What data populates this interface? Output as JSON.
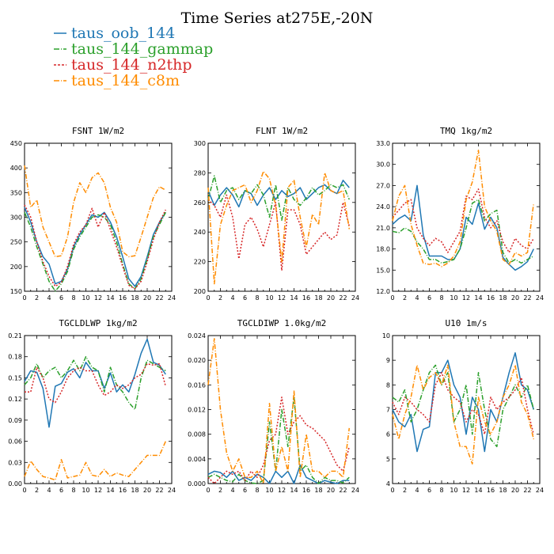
{
  "figure": {
    "title": "Time Series at275E,-20N"
  },
  "legend": [
    {
      "name": "taus_oob_144",
      "color": "#1f77b4"
    },
    {
      "name": "taus_144_gammap",
      "color": "#2ca02c"
    },
    {
      "name": "taus_144_n2thp",
      "color": "#d62728"
    },
    {
      "name": "taus_144_c8m",
      "color": "#ff8c00"
    }
  ],
  "chart_data": [
    {
      "type": "line",
      "title": "FSNT   1W/m2",
      "xlim": [
        0,
        24
      ],
      "ylim": [
        150,
        450
      ],
      "xticks": [
        0,
        2,
        4,
        6,
        8,
        10,
        12,
        14,
        16,
        18,
        20,
        22,
        24
      ],
      "yticks": [
        150,
        200,
        250,
        300,
        350,
        400,
        450
      ],
      "x": [
        0,
        1,
        2,
        3,
        4,
        5,
        6,
        7,
        8,
        9,
        10,
        11,
        12,
        13,
        14,
        15,
        16,
        17,
        18,
        19,
        20,
        21,
        22,
        23
      ],
      "series": [
        {
          "name": "taus_oob_144",
          "color": "#1f77b4",
          "dash": "",
          "values": [
            320,
            290,
            250,
            220,
            205,
            165,
            170,
            195,
            240,
            265,
            285,
            305,
            300,
            310,
            290,
            260,
            220,
            175,
            160,
            180,
            220,
            265,
            290,
            310
          ]
        },
        {
          "name": "taus_144_gammap",
          "color": "#2ca02c",
          "dash": "6,2,1,2",
          "values": [
            310,
            280,
            240,
            205,
            170,
            150,
            165,
            190,
            235,
            260,
            280,
            300,
            305,
            300,
            285,
            250,
            205,
            165,
            155,
            175,
            215,
            260,
            285,
            310
          ]
        },
        {
          "name": "taus_144_n2thp",
          "color": "#d62728",
          "dash": "2,2",
          "values": [
            325,
            300,
            250,
            210,
            180,
            160,
            168,
            200,
            245,
            270,
            285,
            318,
            280,
            310,
            275,
            240,
            200,
            162,
            155,
            170,
            210,
            255,
            290,
            315
          ]
        },
        {
          "name": "taus_144_c8m",
          "color": "#ff8c00",
          "dash": "6,2,1,2",
          "values": [
            405,
            320,
            335,
            280,
            250,
            220,
            222,
            260,
            330,
            370,
            350,
            380,
            390,
            370,
            320,
            290,
            230,
            220,
            222,
            260,
            300,
            340,
            362,
            355
          ]
        }
      ]
    },
    {
      "type": "line",
      "title": "FLNT   1W/m2",
      "xlim": [
        0,
        24
      ],
      "ylim": [
        200,
        300
      ],
      "xticks": [
        0,
        2,
        4,
        6,
        8,
        10,
        12,
        14,
        16,
        18,
        20,
        22,
        24
      ],
      "yticks": [
        200,
        220,
        240,
        260,
        280,
        300
      ],
      "x": [
        0,
        1,
        2,
        3,
        4,
        5,
        6,
        7,
        8,
        9,
        10,
        11,
        12,
        13,
        14,
        15,
        16,
        17,
        18,
        19,
        20,
        21,
        22,
        23
      ],
      "series": [
        {
          "name": "taus_oob_144",
          "color": "#1f77b4",
          "dash": "",
          "values": [
            268,
            258,
            265,
            270,
            265,
            257,
            268,
            266,
            258,
            265,
            270,
            262,
            268,
            264,
            266,
            270,
            262,
            266,
            270,
            272,
            268,
            266,
            275,
            270
          ]
        },
        {
          "name": "taus_144_gammap",
          "color": "#2ca02c",
          "dash": "6,2,1,2",
          "values": [
            262,
            278,
            260,
            268,
            270,
            262,
            268,
            266,
            272,
            265,
            250,
            272,
            248,
            270,
            262,
            258,
            263,
            270,
            265,
            268,
            272,
            270,
            272,
            262
          ]
        },
        {
          "name": "taus_144_n2thp",
          "color": "#d62728",
          "dash": "2,2",
          "values": [
            262,
            258,
            250,
            265,
            250,
            222,
            245,
            250,
            242,
            230,
            245,
            260,
            214,
            255,
            255,
            245,
            225,
            230,
            235,
            240,
            235,
            238,
            260,
            244
          ]
        },
        {
          "name": "taus_144_c8m",
          "color": "#ff8c00",
          "dash": "6,2,1,2",
          "values": [
            270,
            205,
            245,
            258,
            268,
            270,
            272,
            260,
            268,
            281,
            276,
            258,
            220,
            270,
            275,
            250,
            230,
            252,
            245,
            280,
            268,
            266,
            268,
            242
          ]
        }
      ]
    },
    {
      "type": "line",
      "title": "TMQ   1kg/m2",
      "xlim": [
        0,
        24
      ],
      "ylim": [
        12,
        33
      ],
      "xticks": [
        0,
        2,
        4,
        6,
        8,
        10,
        12,
        14,
        16,
        18,
        20,
        22,
        24
      ],
      "yticks": [
        12.0,
        15.0,
        18.0,
        21.0,
        24.0,
        27.0,
        30.0,
        33.0
      ],
      "ytick_labels": [
        "12.0",
        "15.0",
        "18.0",
        "21.0",
        "24.0",
        "27.0",
        "30.0",
        "33.0"
      ],
      "x": [
        0,
        1,
        2,
        3,
        4,
        5,
        6,
        7,
        8,
        9,
        10,
        11,
        12,
        13,
        14,
        15,
        16,
        17,
        18,
        19,
        20,
        21,
        22,
        23
      ],
      "series": [
        {
          "name": "taus_oob_144",
          "color": "#1f77b4",
          "dash": "",
          "values": [
            21.5,
            22.3,
            22.8,
            22.0,
            27.0,
            20.0,
            17.0,
            17.0,
            17.0,
            16.5,
            16.5,
            18.0,
            22.5,
            21.5,
            24.5,
            20.8,
            22.5,
            21.0,
            16.8,
            15.8,
            15.0,
            15.5,
            16.2,
            18.0
          ]
        },
        {
          "name": "taus_144_gammap",
          "color": "#2ca02c",
          "dash": "6,2,1,2",
          "values": [
            20.5,
            20.3,
            21.0,
            20.5,
            19.0,
            18.0,
            16.5,
            16.5,
            16.0,
            16.2,
            16.5,
            18.0,
            21.0,
            24.5,
            25.0,
            22.0,
            23.0,
            23.5,
            17.5,
            16.0,
            16.5,
            16.0,
            16.5,
            17.0
          ]
        },
        {
          "name": "taus_144_n2thp",
          "color": "#d62728",
          "dash": "2,2",
          "values": [
            22.5,
            23.5,
            24.5,
            25.0,
            21.0,
            19.5,
            18.5,
            19.5,
            19.0,
            17.5,
            19.0,
            20.5,
            25.5,
            25.0,
            26.5,
            22.5,
            21.0,
            22.0,
            19.0,
            17.5,
            19.5,
            18.5,
            18.0,
            19.5
          ]
        },
        {
          "name": "taus_144_c8m",
          "color": "#ff8c00",
          "dash": "6,2,1,2",
          "values": [
            22.0,
            25.5,
            27.0,
            21.5,
            18.5,
            16.0,
            15.8,
            16.0,
            15.5,
            16.0,
            17.0,
            19.0,
            25.0,
            27.5,
            32.0,
            24.0,
            22.0,
            20.5,
            16.5,
            15.8,
            17.5,
            17.0,
            17.5,
            24.5
          ]
        }
      ]
    },
    {
      "type": "line",
      "title": "TGCLDLWP   1kg/m2",
      "xlim": [
        0,
        24
      ],
      "ylim": [
        0,
        0.21
      ],
      "xticks": [
        0,
        2,
        4,
        6,
        8,
        10,
        12,
        14,
        16,
        18,
        20,
        22,
        24
      ],
      "yticks": [
        0.0,
        0.03,
        0.06,
        0.09,
        0.12,
        0.15,
        0.18,
        0.21
      ],
      "ytick_labels": [
        "0.00",
        "0.03",
        "0.06",
        "0.09",
        "0.12",
        "0.15",
        "0.18",
        "0.21"
      ],
      "x": [
        0,
        1,
        2,
        3,
        4,
        5,
        6,
        7,
        8,
        9,
        10,
        11,
        12,
        13,
        14,
        15,
        16,
        17,
        18,
        19,
        20,
        21,
        22,
        23
      ],
      "series": [
        {
          "name": "taus_oob_144",
          "color": "#1f77b4",
          "dash": "",
          "values": [
            0.145,
            0.16,
            0.158,
            0.135,
            0.08,
            0.138,
            0.142,
            0.158,
            0.163,
            0.15,
            0.172,
            0.16,
            0.16,
            0.135,
            0.157,
            0.13,
            0.14,
            0.13,
            0.155,
            0.185,
            0.205,
            0.172,
            0.168,
            0.155
          ]
        },
        {
          "name": "taus_144_gammap",
          "color": "#2ca02c",
          "dash": "6,2,1,2",
          "values": [
            0.14,
            0.15,
            0.17,
            0.15,
            0.16,
            0.165,
            0.15,
            0.16,
            0.175,
            0.16,
            0.18,
            0.165,
            0.16,
            0.13,
            0.165,
            0.14,
            0.13,
            0.115,
            0.105,
            0.15,
            0.175,
            0.17,
            0.165,
            0.16
          ]
        },
        {
          "name": "taus_144_n2thp",
          "color": "#d62728",
          "dash": "2,2",
          "values": [
            0.13,
            0.13,
            0.165,
            0.15,
            0.12,
            0.115,
            0.13,
            0.15,
            0.16,
            0.165,
            0.16,
            0.16,
            0.14,
            0.125,
            0.13,
            0.14,
            0.135,
            0.14,
            0.15,
            0.155,
            0.17,
            0.168,
            0.17,
            0.138
          ]
        },
        {
          "name": "taus_144_c8m",
          "color": "#ff8c00",
          "dash": "6,2,1,2",
          "values": [
            0.01,
            0.032,
            0.02,
            0.01,
            0.008,
            0.005,
            0.034,
            0.008,
            0.01,
            0.012,
            0.03,
            0.012,
            0.01,
            0.02,
            0.01,
            0.015,
            0.012,
            0.01,
            0.02,
            0.03,
            0.04,
            0.04,
            0.04,
            0.06
          ]
        }
      ]
    },
    {
      "type": "line",
      "title": "TGCLDIWP   1.0kg/m2",
      "xlim": [
        0,
        24
      ],
      "ylim": [
        0,
        0.024
      ],
      "xticks": [
        0,
        2,
        4,
        6,
        8,
        10,
        12,
        14,
        16,
        18,
        20,
        22,
        24
      ],
      "yticks": [
        0.0,
        0.004,
        0.008,
        0.012,
        0.016,
        0.02,
        0.024
      ],
      "ytick_labels": [
        "0.000",
        "0.004",
        "0.008",
        "0.012",
        "0.016",
        "0.020",
        "0.024"
      ],
      "x": [
        0,
        1,
        2,
        3,
        4,
        5,
        6,
        7,
        8,
        9,
        10,
        11,
        12,
        13,
        14,
        15,
        16,
        17,
        18,
        19,
        20,
        21,
        22,
        23
      ],
      "series": [
        {
          "name": "taus_oob_144",
          "color": "#1f77b4",
          "dash": "",
          "values": [
            0.0015,
            0.002,
            0.0018,
            0.001,
            0.002,
            0.0005,
            0.001,
            0.0005,
            0.0015,
            0.001,
            0.0,
            0.002,
            0.001,
            0.002,
            0.0,
            0.003,
            0.001,
            0.0005,
            0.0,
            0.0005,
            0.0002,
            0.0,
            0.0005,
            0.0005
          ]
        },
        {
          "name": "taus_144_gammap",
          "color": "#2ca02c",
          "dash": "6,2,1,2",
          "values": [
            0.001,
            0.0015,
            0.001,
            0.0005,
            0.0003,
            0.0015,
            0.0005,
            0.0001,
            0.0,
            0.0005,
            0.01,
            0.002,
            0.012,
            0.006,
            0.014,
            0.002,
            0.003,
            0.001,
            0.0,
            0.001,
            0.0005,
            0.0005,
            0.0001,
            0.001
          ]
        },
        {
          "name": "taus_144_n2thp",
          "color": "#d62728",
          "dash": "2,2",
          "values": [
            0.001,
            0.0,
            0.001,
            0.002,
            0.0015,
            0.002,
            0.0005,
            0.002,
            0.001,
            0.003,
            0.007,
            0.008,
            0.014,
            0.008,
            0.01,
            0.011,
            0.0095,
            0.009,
            0.008,
            0.007,
            0.005,
            0.003,
            0.002,
            0.006
          ]
        },
        {
          "name": "taus_144_c8m",
          "color": "#ff8c00",
          "dash": "6,2,1,2",
          "values": [
            0.016,
            0.0235,
            0.012,
            0.005,
            0.002,
            0.004,
            0.001,
            0.001,
            0.002,
            0.0,
            0.013,
            0.002,
            0.006,
            0.002,
            0.015,
            0.001,
            0.008,
            0.002,
            0.002,
            0.001,
            0.002,
            0.002,
            0.001,
            0.009
          ]
        }
      ]
    },
    {
      "type": "line",
      "title": "U10   1m/s",
      "xlim": [
        0,
        24
      ],
      "ylim": [
        4,
        10
      ],
      "xticks": [
        0,
        2,
        4,
        6,
        8,
        10,
        12,
        14,
        16,
        18,
        20,
        22,
        24
      ],
      "yticks": [
        4,
        5,
        6,
        7,
        8,
        9,
        10
      ],
      "x": [
        0,
        1,
        2,
        3,
        4,
        5,
        6,
        7,
        8,
        9,
        10,
        11,
        12,
        13,
        14,
        15,
        16,
        17,
        18,
        19,
        20,
        21,
        22,
        23
      ],
      "series": [
        {
          "name": "taus_oob_144",
          "color": "#1f77b4",
          "dash": "",
          "values": [
            7.0,
            6.5,
            6.3,
            6.8,
            5.3,
            6.2,
            6.3,
            8.5,
            8.5,
            9.0,
            8.0,
            7.5,
            6.0,
            7.5,
            7.0,
            5.3,
            7.0,
            6.5,
            7.5,
            8.5,
            9.3,
            8.0,
            7.8,
            7.0
          ]
        },
        {
          "name": "taus_144_gammap",
          "color": "#2ca02c",
          "dash": "6,2,1,2",
          "values": [
            7.5,
            7.3,
            7.8,
            6.5,
            7.0,
            7.8,
            8.5,
            8.8,
            8.0,
            8.5,
            6.5,
            7.0,
            8.0,
            6.0,
            8.5,
            7.0,
            5.8,
            5.5,
            7.0,
            7.5,
            8.0,
            7.5,
            8.0,
            7.0
          ]
        },
        {
          "name": "taus_144_n2thp",
          "color": "#d62728",
          "dash": "2,2",
          "values": [
            7.3,
            6.8,
            7.5,
            7.3,
            7.0,
            6.8,
            6.5,
            8.0,
            8.5,
            7.8,
            7.5,
            7.3,
            6.5,
            7.0,
            6.8,
            6.0,
            7.5,
            7.0,
            7.3,
            7.5,
            7.8,
            8.3,
            7.0,
            6.0
          ]
        },
        {
          "name": "taus_144_c8m",
          "color": "#ff8c00",
          "dash": "6,2,1,2",
          "values": [
            6.8,
            5.8,
            6.8,
            7.5,
            8.8,
            7.8,
            8.3,
            8.5,
            8.0,
            8.8,
            6.5,
            5.5,
            5.5,
            4.8,
            7.5,
            6.5,
            6.0,
            6.5,
            7.5,
            8.0,
            8.8,
            7.3,
            6.8,
            5.8
          ]
        }
      ]
    }
  ]
}
